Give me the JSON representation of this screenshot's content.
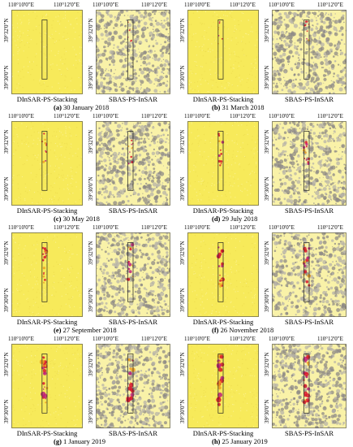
{
  "labels": {
    "lon1": "110°10'0\"E",
    "lon2": "110°12'0\"E",
    "lat1": "39°32'0\"N",
    "lat2": "39°30'0\"N",
    "method_a": "DInSAR-PS-Stacking",
    "method_b": "SBAS-PS-InSAR"
  },
  "panels": [
    {
      "letter": "(a)",
      "date": " 30 January 2018",
      "dinsar_intensity": 0.0,
      "sbas_intensity": 0.1
    },
    {
      "letter": "(b)",
      "date": " 31 March 2018",
      "dinsar_intensity": 0.15,
      "sbas_intensity": 0.2
    },
    {
      "letter": "(c)",
      "date": " 30 May 2018",
      "dinsar_intensity": 0.35,
      "sbas_intensity": 0.35
    },
    {
      "letter": "(d)",
      "date": " 29 July 2018",
      "dinsar_intensity": 0.45,
      "sbas_intensity": 0.45
    },
    {
      "letter": "(e)",
      "date": " 27 September 2018",
      "dinsar_intensity": 0.7,
      "sbas_intensity": 0.6
    },
    {
      "letter": "(f)",
      "date": " 26 November 2018",
      "dinsar_intensity": 0.8,
      "sbas_intensity": 0.7
    },
    {
      "letter": "(g)",
      "date": " 1 January 2019",
      "dinsar_intensity": 0.95,
      "sbas_intensity": 0.85
    },
    {
      "letter": "(h)",
      "date": " 25 January 2019",
      "dinsar_intensity": 1.0,
      "sbas_intensity": 0.9
    }
  ],
  "colors": {
    "background_yellow": "#f7ea5a",
    "pale_yellow": "#f9f2a8",
    "gray_speckle": "#8d8a86",
    "subsidence_red": "#d8182c",
    "subsidence_magenta": "#c0207a",
    "orange": "#f0a020"
  }
}
